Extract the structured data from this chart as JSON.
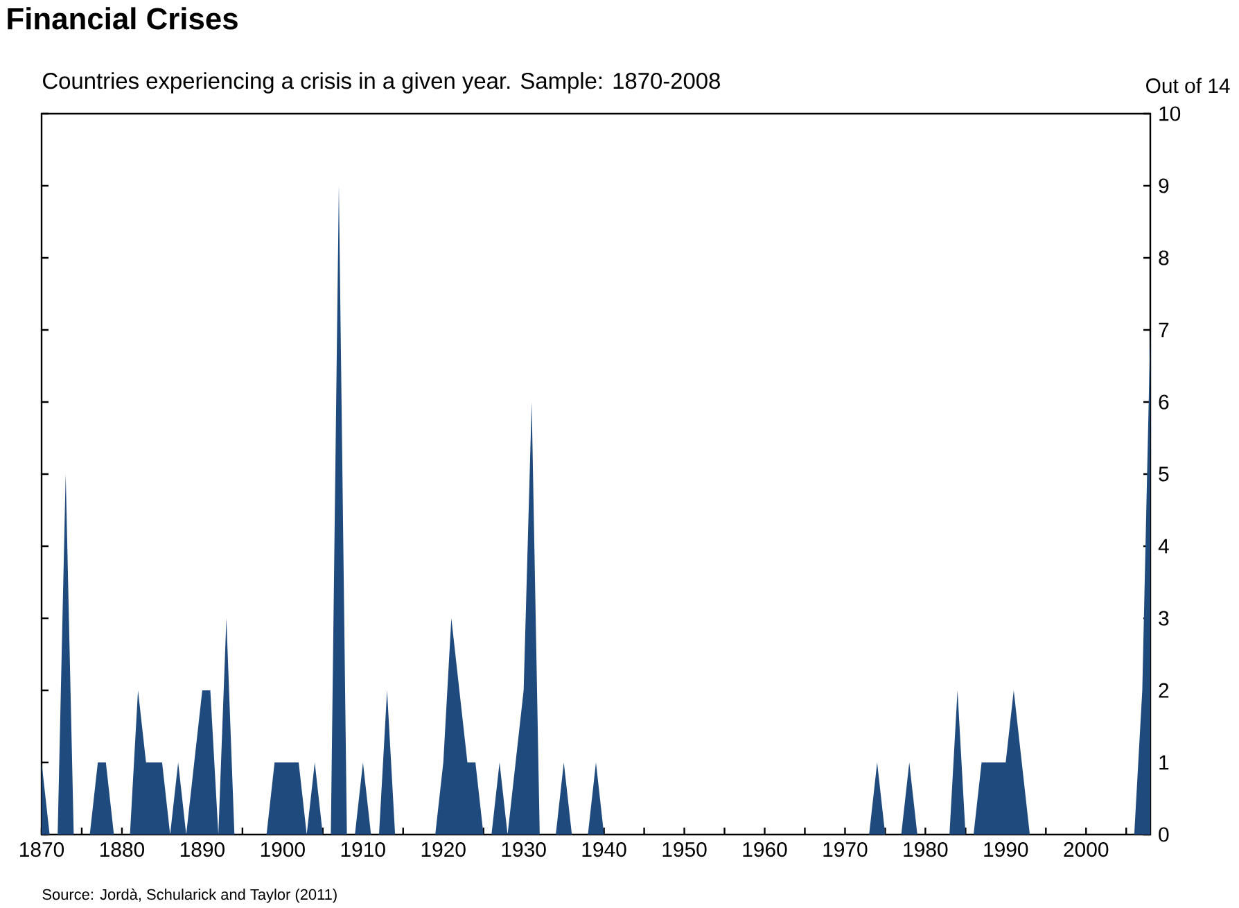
{
  "chart_data": {
    "type": "area",
    "title": "Financial Crises",
    "subtitle": "Countries experiencing a crisis in a given year. Sample: 1870-2008",
    "ylabel": "Out of 14",
    "annotations": [
      "Source: Jordà, Schularick and Taylor (2011)"
    ],
    "color": "#1f4a7e",
    "x": [
      1870,
      1871,
      1872,
      1873,
      1874,
      1875,
      1876,
      1877,
      1878,
      1879,
      1880,
      1881,
      1882,
      1883,
      1884,
      1885,
      1886,
      1887,
      1888,
      1889,
      1890,
      1891,
      1892,
      1893,
      1894,
      1895,
      1896,
      1897,
      1898,
      1899,
      1900,
      1901,
      1902,
      1903,
      1904,
      1905,
      1906,
      1907,
      1908,
      1909,
      1910,
      1911,
      1912,
      1913,
      1914,
      1915,
      1916,
      1917,
      1918,
      1919,
      1920,
      1921,
      1922,
      1923,
      1924,
      1925,
      1926,
      1927,
      1928,
      1929,
      1930,
      1931,
      1932,
      1933,
      1934,
      1935,
      1936,
      1937,
      1938,
      1939,
      1940,
      1941,
      1942,
      1943,
      1944,
      1945,
      1946,
      1947,
      1948,
      1949,
      1950,
      1951,
      1952,
      1953,
      1954,
      1955,
      1956,
      1957,
      1958,
      1959,
      1960,
      1961,
      1962,
      1963,
      1964,
      1965,
      1966,
      1967,
      1968,
      1969,
      1970,
      1971,
      1972,
      1973,
      1974,
      1975,
      1976,
      1977,
      1978,
      1979,
      1980,
      1981,
      1982,
      1983,
      1984,
      1985,
      1986,
      1987,
      1988,
      1989,
      1990,
      1991,
      1992,
      1993,
      1994,
      1995,
      1996,
      1997,
      1998,
      1999,
      2000,
      2001,
      2002,
      2003,
      2004,
      2005,
      2006,
      2007,
      2008
    ],
    "values": [
      1,
      0,
      0,
      5,
      0,
      0,
      0,
      1,
      1,
      0,
      0,
      0,
      2,
      1,
      1,
      1,
      0,
      1,
      0,
      1,
      2,
      2,
      0,
      3,
      0,
      0,
      0,
      0,
      0,
      1,
      1,
      1,
      1,
      0,
      1,
      0,
      0,
      9,
      0,
      0,
      1,
      0,
      0,
      2,
      0,
      0,
      0,
      0,
      0,
      0,
      1,
      3,
      2,
      1,
      1,
      0,
      0,
      1,
      0,
      1,
      2,
      6,
      0,
      0,
      0,
      1,
      0,
      0,
      0,
      1,
      0,
      0,
      0,
      0,
      0,
      0,
      0,
      0,
      0,
      0,
      0,
      0,
      0,
      0,
      0,
      0,
      0,
      0,
      0,
      0,
      0,
      0,
      0,
      0,
      0,
      0,
      0,
      0,
      0,
      0,
      0,
      0,
      0,
      0,
      1,
      0,
      0,
      0,
      1,
      0,
      0,
      0,
      0,
      0,
      2,
      0,
      0,
      1,
      1,
      1,
      1,
      2,
      1,
      0,
      0,
      0,
      0,
      0,
      0,
      0,
      0,
      0,
      0,
      0,
      0,
      0,
      0,
      2,
      7
    ],
    "xlim": [
      1870,
      2008
    ],
    "ylim": [
      0,
      10
    ],
    "xticks": [
      1870,
      {
        "value": 1875,
        "label": null
      },
      1880,
      {
        "value": 1885,
        "label": null
      },
      1890,
      {
        "value": 1895,
        "label": null
      },
      1900,
      {
        "value": 1905,
        "label": null
      },
      1910,
      {
        "value": 1915,
        "label": null
      },
      1920,
      {
        "value": 1925,
        "label": null
      },
      1930,
      {
        "value": 1935,
        "label": null
      },
      1940,
      {
        "value": 1945,
        "label": null
      },
      1950,
      {
        "value": 1955,
        "label": null
      },
      1960,
      {
        "value": 1965,
        "label": null
      },
      1970,
      {
        "value": 1975,
        "label": null
      },
      1980,
      {
        "value": 1985,
        "label": null
      },
      1990,
      {
        "value": 1995,
        "label": null
      },
      2000,
      {
        "value": 2005,
        "label": null
      }
    ],
    "yticks": [
      0,
      1,
      2,
      3,
      4,
      5,
      6,
      7,
      8,
      9,
      10
    ]
  }
}
